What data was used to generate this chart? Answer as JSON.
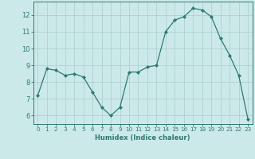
{
  "x": [
    0,
    1,
    2,
    3,
    4,
    5,
    6,
    7,
    8,
    9,
    10,
    11,
    12,
    13,
    14,
    15,
    16,
    17,
    18,
    19,
    20,
    21,
    22,
    23
  ],
  "y": [
    7.2,
    8.8,
    8.7,
    8.4,
    8.5,
    8.3,
    7.4,
    6.5,
    6.0,
    6.5,
    8.6,
    8.6,
    8.9,
    9.0,
    11.0,
    11.7,
    11.9,
    12.4,
    12.3,
    11.9,
    10.6,
    9.6,
    8.4,
    5.8
  ],
  "xlabel": "Humidex (Indice chaleur)",
  "xlim": [
    -0.5,
    23.5
  ],
  "ylim": [
    5.5,
    12.8
  ],
  "yticks": [
    6,
    7,
    8,
    9,
    10,
    11,
    12
  ],
  "xticks": [
    0,
    1,
    2,
    3,
    4,
    5,
    6,
    7,
    8,
    9,
    10,
    11,
    12,
    13,
    14,
    15,
    16,
    17,
    18,
    19,
    20,
    21,
    22,
    23
  ],
  "line_color": "#2d7b6e",
  "marker": "D",
  "marker_size": 2.0,
  "bg_color": "#cce9e9",
  "grid_color": "#aacccc",
  "spine_color": "#2d7b6e",
  "tick_color": "#2d7b6e",
  "label_color": "#2d7b6e",
  "xlabel_fontsize": 6.0,
  "ytick_fontsize": 6.0,
  "xtick_fontsize": 5.2
}
